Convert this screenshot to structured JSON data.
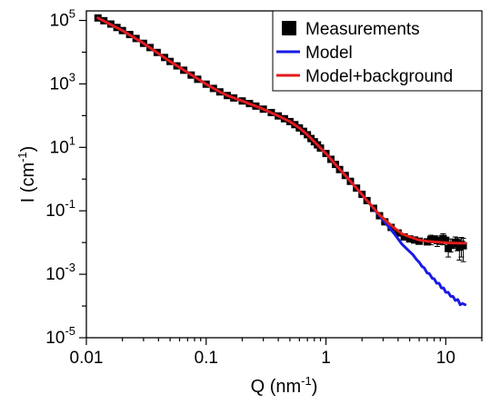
{
  "chart_data": {
    "type": "scatter",
    "title": "",
    "xlabel": {
      "base": "Q (nm",
      "sup": "-1",
      "close": ")"
    },
    "ylabel": {
      "base": "I (cm",
      "sup": "-1",
      "close": ")"
    },
    "xscale": "log",
    "yscale": "log",
    "xlim": [
      0.01,
      20
    ],
    "ylim": [
      1e-05,
      200000
    ],
    "grid": false,
    "legend_position": "top-right",
    "x_ticks": [
      {
        "value": 0.01,
        "label": "0.01"
      },
      {
        "value": 0.1,
        "label": "0.1"
      },
      {
        "value": 1,
        "label": "1"
      },
      {
        "value": 10,
        "label": "10"
      }
    ],
    "y_ticks": [
      {
        "value": 100000,
        "base": "10",
        "exp": "5"
      },
      {
        "value": 1000,
        "base": "10",
        "exp": "3"
      },
      {
        "value": 10,
        "base": "10",
        "exp": "1"
      },
      {
        "value": 0.1,
        "base": "10",
        "exp": "-1"
      },
      {
        "value": 0.001,
        "base": "10",
        "exp": "-3"
      },
      {
        "value": 1e-05,
        "base": "10",
        "exp": "-5"
      }
    ],
    "series": [
      {
        "name": "Measurements",
        "style": "marker",
        "color": "#000000",
        "points": [
          [
            0.0125,
            120000
          ],
          [
            0.014,
            98000
          ],
          [
            0.016,
            77000
          ],
          [
            0.018,
            60000
          ],
          [
            0.02,
            48000
          ],
          [
            0.023,
            36000
          ],
          [
            0.026,
            27000
          ],
          [
            0.03,
            19000
          ],
          [
            0.034,
            14000
          ],
          [
            0.039,
            9800
          ],
          [
            0.045,
            6800
          ],
          [
            0.05,
            5100
          ],
          [
            0.057,
            3700
          ],
          [
            0.065,
            2700
          ],
          [
            0.075,
            1900
          ],
          [
            0.085,
            1400
          ],
          [
            0.1,
            980
          ],
          [
            0.115,
            720
          ],
          [
            0.13,
            560
          ],
          [
            0.15,
            430
          ],
          [
            0.17,
            360
          ],
          [
            0.2,
            290
          ],
          [
            0.23,
            240
          ],
          [
            0.26,
            200
          ],
          [
            0.3,
            160
          ],
          [
            0.35,
            125
          ],
          [
            0.4,
            98
          ],
          [
            0.45,
            80
          ],
          [
            0.5,
            65
          ],
          [
            0.55,
            52
          ],
          [
            0.6,
            41
          ],
          [
            0.65,
            32
          ],
          [
            0.7,
            25
          ],
          [
            0.75,
            19
          ],
          [
            0.8,
            15
          ],
          [
            0.85,
            12
          ],
          [
            0.9,
            9.5
          ],
          [
            1.0,
            6.4
          ],
          [
            1.1,
            4.2
          ],
          [
            1.2,
            2.9
          ],
          [
            1.3,
            2.0
          ],
          [
            1.45,
            1.3
          ],
          [
            1.6,
            0.85
          ],
          [
            1.8,
            0.52
          ],
          [
            2.0,
            0.33
          ],
          [
            2.2,
            0.21
          ],
          [
            2.5,
            0.12
          ],
          [
            2.8,
            0.07
          ],
          [
            3.1,
            0.045
          ],
          [
            3.5,
            0.03
          ],
          [
            4.0,
            0.02
          ],
          [
            4.5,
            0.015
          ],
          [
            5.0,
            0.013
          ],
          [
            5.5,
            0.012
          ],
          [
            6.0,
            0.011
          ],
          [
            7.0,
            0.0105
          ],
          [
            7.5,
            0.0125
          ],
          [
            8.0,
            0.013
          ],
          [
            8.5,
            0.0115
          ],
          [
            9.0,
            0.011
          ],
          [
            9.5,
            0.0135
          ],
          [
            10.0,
            0.0118
          ],
          [
            10.5,
            0.0065
          ],
          [
            11.0,
            0.0082
          ],
          [
            12.0,
            0.0102
          ],
          [
            12.5,
            0.0092
          ],
          [
            13.0,
            0.0072
          ],
          [
            13.5,
            0.0088
          ],
          [
            14.0,
            0.0079
          ]
        ]
      },
      {
        "name": "Model",
        "style": "line",
        "color": "#1a1ae6",
        "points": [
          [
            0.0125,
            120000
          ],
          [
            0.02,
            48000
          ],
          [
            0.03,
            19000
          ],
          [
            0.05,
            5100
          ],
          [
            0.07,
            2300
          ],
          [
            0.1,
            980
          ],
          [
            0.13,
            560
          ],
          [
            0.15,
            430
          ],
          [
            0.2,
            290
          ],
          [
            0.3,
            160
          ],
          [
            0.4,
            98
          ],
          [
            0.5,
            65
          ],
          [
            0.6,
            41
          ],
          [
            0.7,
            25
          ],
          [
            0.8,
            15
          ],
          [
            0.9,
            9.5
          ],
          [
            1.0,
            6.4
          ],
          [
            1.2,
            2.9
          ],
          [
            1.45,
            1.3
          ],
          [
            1.8,
            0.52
          ],
          [
            2.2,
            0.21
          ],
          [
            2.8,
            0.07
          ],
          [
            3.3,
            0.033
          ],
          [
            3.8,
            0.017
          ],
          [
            4.3,
            0.009
          ],
          [
            4.8,
            0.006
          ],
          [
            5.3,
            0.0042
          ],
          [
            5.7,
            0.0029
          ],
          [
            6.0,
            0.0024
          ],
          [
            6.3,
            0.0018
          ],
          [
            6.6,
            0.0016
          ],
          [
            7.0,
            0.0011
          ],
          [
            7.3,
            0.00105
          ],
          [
            7.7,
            0.00075
          ],
          [
            8.0,
            0.00072
          ],
          [
            8.4,
            0.00052
          ],
          [
            8.8,
            0.00052
          ],
          [
            9.2,
            0.00037
          ],
          [
            9.6,
            0.00037
          ],
          [
            10.0,
            0.00027
          ],
          [
            10.5,
            0.00027
          ],
          [
            11.0,
            0.0002
          ],
          [
            11.5,
            0.0002
          ],
          [
            12.0,
            0.00015
          ],
          [
            12.6,
            0.00016
          ],
          [
            13.2,
            0.00011
          ],
          [
            13.8,
            0.00012
          ],
          [
            14.5,
            0.00011
          ]
        ]
      },
      {
        "name": "Model+background",
        "style": "line",
        "color": "#e31a1a",
        "points": [
          [
            0.0125,
            120000
          ],
          [
            0.02,
            48000
          ],
          [
            0.03,
            19000
          ],
          [
            0.05,
            5100
          ],
          [
            0.07,
            2300
          ],
          [
            0.1,
            980
          ],
          [
            0.13,
            560
          ],
          [
            0.15,
            430
          ],
          [
            0.2,
            290
          ],
          [
            0.3,
            160
          ],
          [
            0.4,
            98
          ],
          [
            0.5,
            65
          ],
          [
            0.6,
            41
          ],
          [
            0.7,
            25
          ],
          [
            0.8,
            15
          ],
          [
            0.9,
            9.5
          ],
          [
            1.0,
            6.4
          ],
          [
            1.2,
            2.9
          ],
          [
            1.45,
            1.3
          ],
          [
            1.8,
            0.52
          ],
          [
            2.2,
            0.21
          ],
          [
            2.8,
            0.075
          ],
          [
            3.3,
            0.042
          ],
          [
            3.8,
            0.027
          ],
          [
            4.3,
            0.019
          ],
          [
            4.8,
            0.016
          ],
          [
            5.3,
            0.014
          ],
          [
            6.0,
            0.012
          ],
          [
            7.0,
            0.011
          ],
          [
            8.0,
            0.0105
          ],
          [
            9.0,
            0.0102
          ],
          [
            10.0,
            0.0099
          ],
          [
            11.0,
            0.0097
          ],
          [
            12.0,
            0.0096
          ],
          [
            13.0,
            0.0095
          ],
          [
            14.5,
            0.0095
          ]
        ]
      }
    ],
    "error_bars": [
      [
        7.5,
        0.0085,
        0.017
      ],
      [
        8.5,
        0.0075,
        0.016
      ],
      [
        9.5,
        0.0085,
        0.019
      ],
      [
        10.5,
        0.0035,
        0.0105
      ],
      [
        11.0,
        0.005,
        0.013
      ],
      [
        12.0,
        0.0065,
        0.015
      ],
      [
        12.5,
        0.0055,
        0.014
      ],
      [
        13.0,
        0.0028,
        0.0125
      ],
      [
        13.5,
        0.0035,
        0.0145
      ],
      [
        14.0,
        0.0025,
        0.0135
      ]
    ]
  }
}
